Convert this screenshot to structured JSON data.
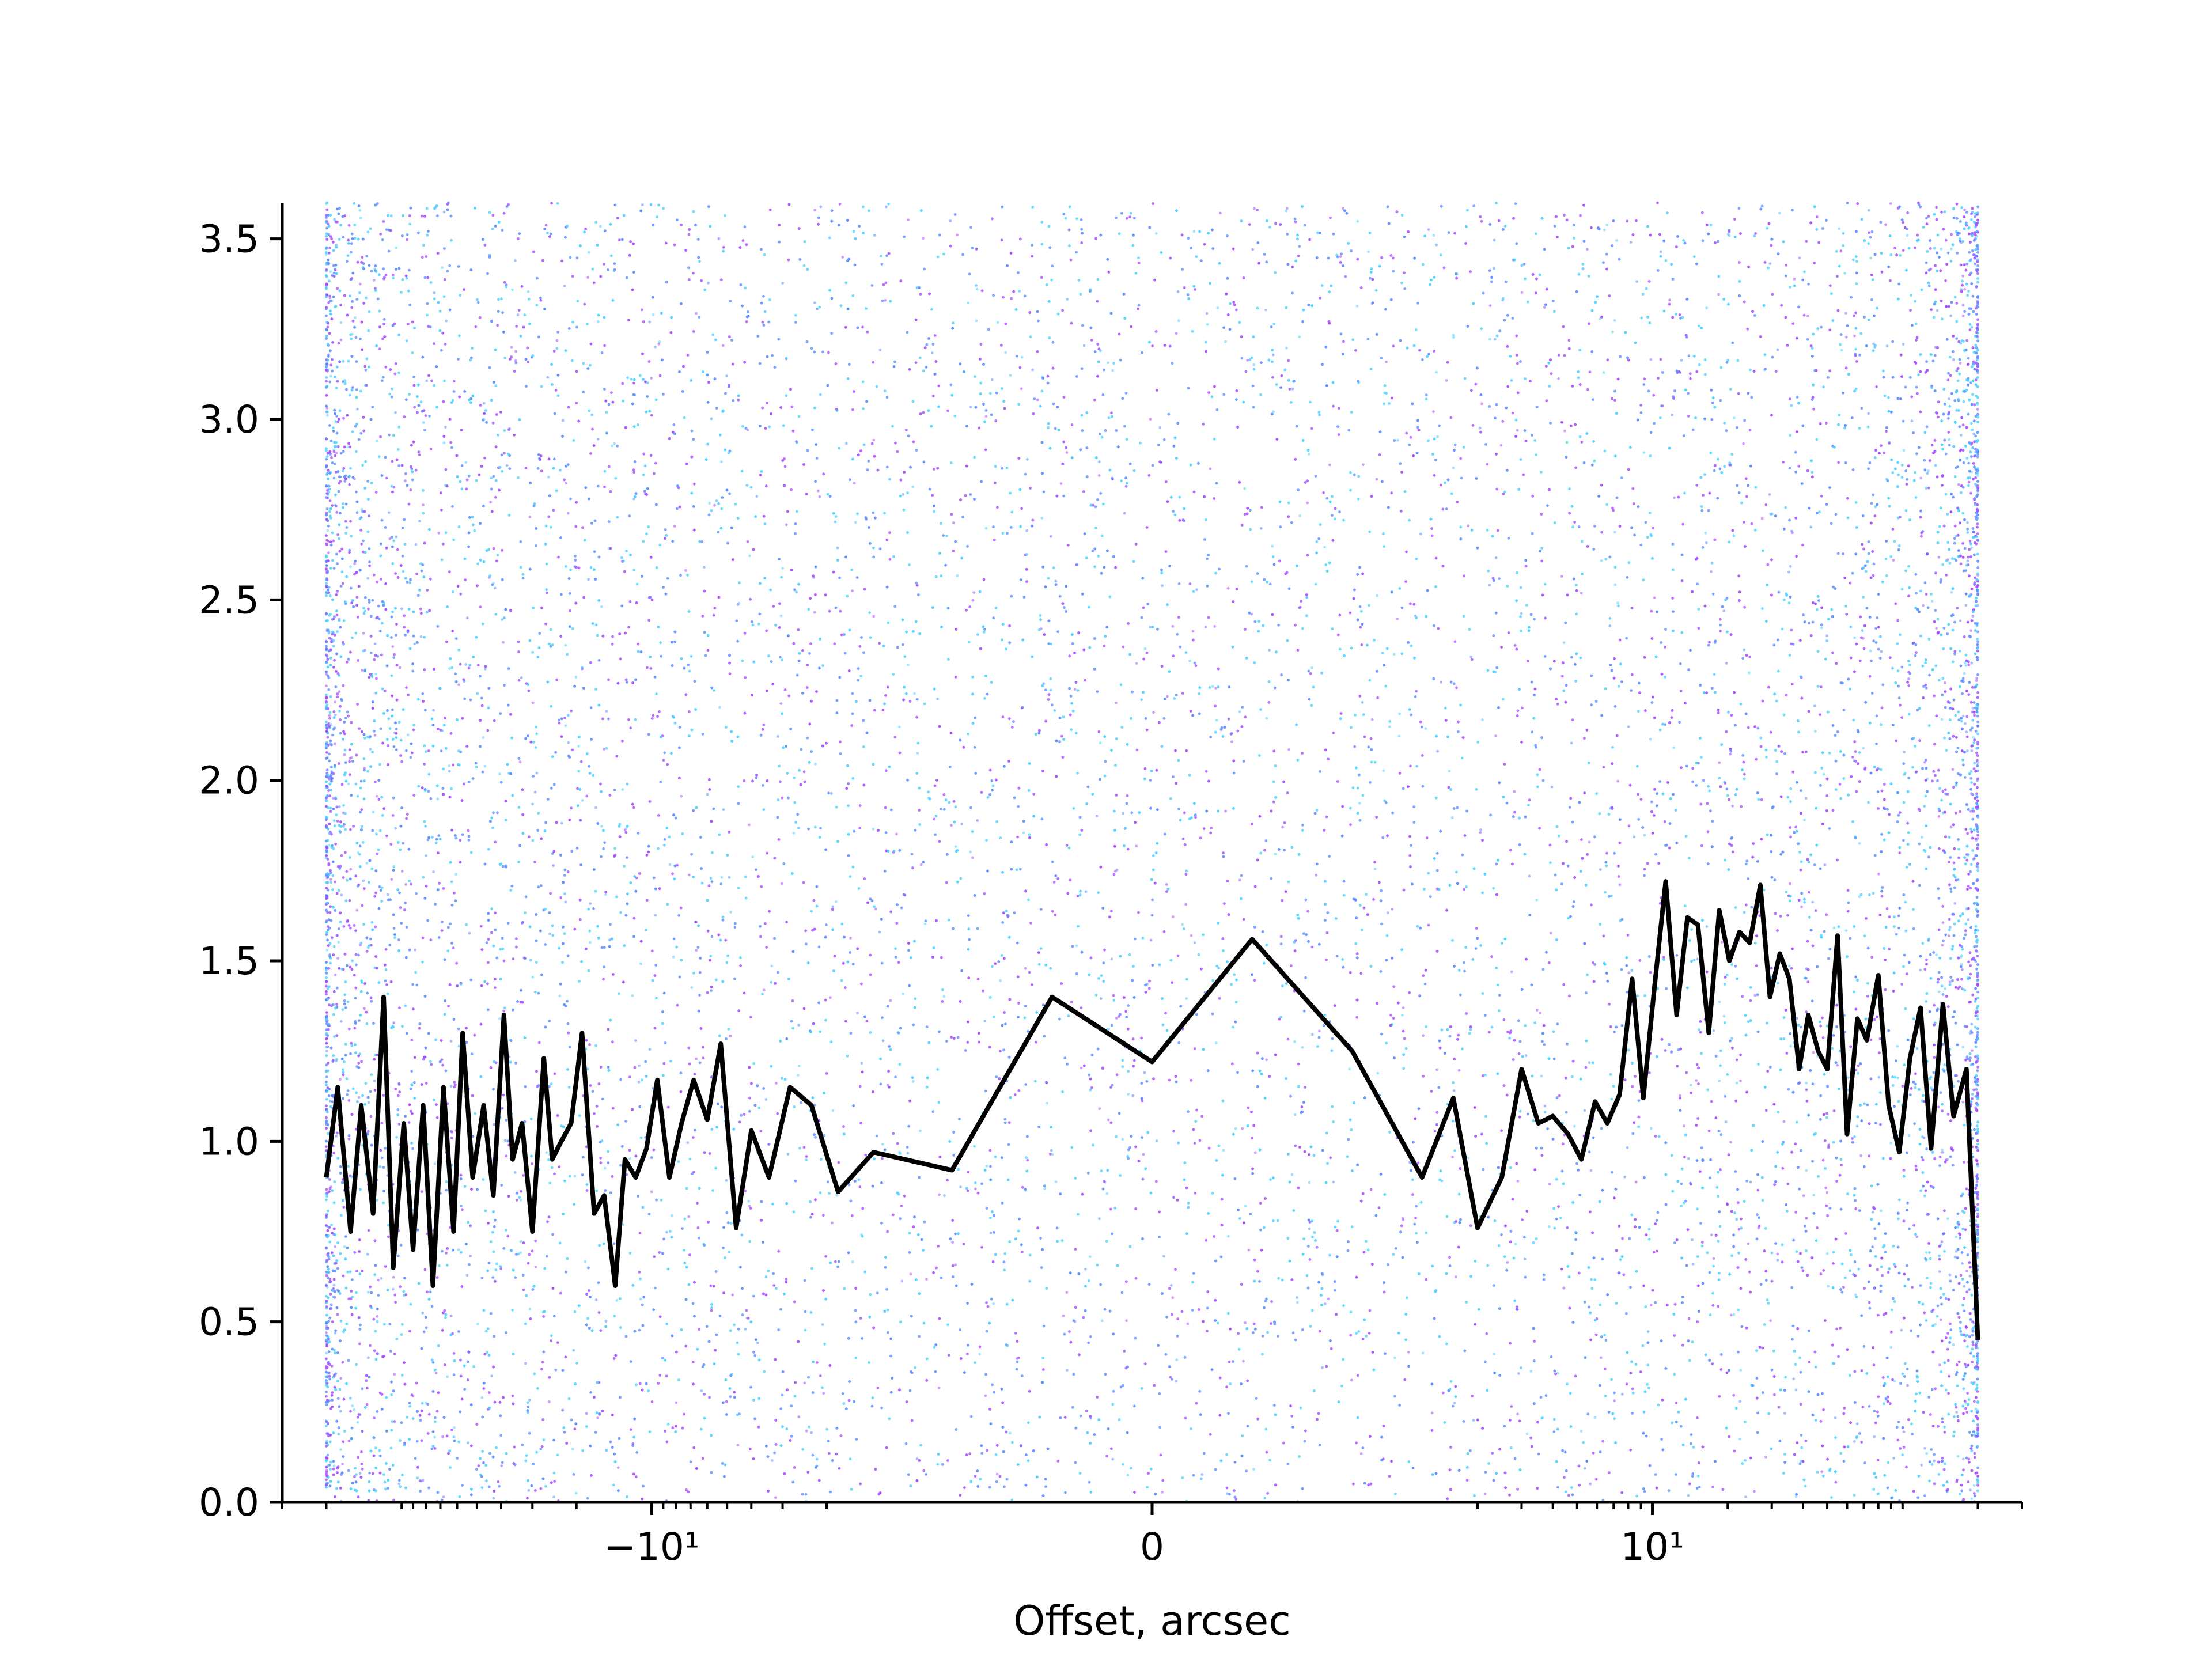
{
  "chart_data": {
    "type": "line",
    "title": "",
    "xlabel": "Offset, arcsec",
    "ylabel": "",
    "xscale": "symlog",
    "symlog_linthresh": 1,
    "xlim": [
      -300,
      300
    ],
    "ylim": [
      0,
      3.6
    ],
    "grid": false,
    "x_ticks": [
      {
        "value": -10,
        "label": "−10¹"
      },
      {
        "value": 0,
        "label": "0"
      },
      {
        "value": 10,
        "label": "10¹"
      }
    ],
    "y_ticks": [
      {
        "value": 0.0,
        "label": "0.0"
      },
      {
        "value": 0.5,
        "label": "0.5"
      },
      {
        "value": 1.0,
        "label": "1.0"
      },
      {
        "value": 1.5,
        "label": "1.5"
      },
      {
        "value": 2.0,
        "label": "2.0"
      },
      {
        "value": 2.5,
        "label": "2.5"
      },
      {
        "value": 3.0,
        "label": "3.0"
      },
      {
        "value": 3.5,
        "label": "3.5"
      }
    ],
    "background_scatter": {
      "description_colors": [
        "#a64dff",
        "#4dd2ff",
        "#5b8cff"
      ],
      "x_range": [
        -200,
        200
      ],
      "y_range": [
        0,
        3.6
      ],
      "density": "higher near the horizontal extremes, sparse in the centre"
    },
    "series": [
      {
        "color": "#000000",
        "x": [
          -200,
          -180,
          -160,
          -145,
          -130,
          -118,
          -108,
          -98,
          -90,
          -82,
          -75,
          -68,
          -62,
          -57,
          -52,
          -47,
          -43,
          -39,
          -36,
          -33,
          -30,
          -27,
          -25,
          -23,
          -21,
          -19,
          -17,
          -15.5,
          -14,
          -12.8,
          -11.6,
          -10.5,
          -9.5,
          -8.5,
          -7.6,
          -6.8,
          -6,
          -5.3,
          -4.6,
          -4,
          -3.4,
          -2.8,
          -2.3,
          -1.8,
          -1.3,
          -0.8,
          -0.4,
          0,
          0.4,
          0.8,
          1.2,
          1.6,
          2,
          2.5,
          3,
          3.5,
          4,
          4.6,
          5.2,
          5.9,
          6.6,
          7.4,
          8.3,
          9.2,
          10.2,
          11.3,
          12.5,
          13.8,
          15.2,
          16.8,
          18.5,
          20.3,
          22.3,
          24.5,
          27,
          29.5,
          32.3,
          35.3,
          38.6,
          42,
          46,
          50,
          55,
          60,
          66,
          72,
          80,
          88,
          97,
          107,
          118,
          130,
          145,
          160,
          180,
          200
        ],
        "values": [
          0.9,
          1.15,
          0.75,
          1.1,
          0.8,
          1.4,
          0.65,
          1.05,
          0.7,
          1.1,
          0.6,
          1.15,
          0.75,
          1.3,
          0.9,
          1.1,
          0.85,
          1.35,
          0.95,
          1.05,
          0.75,
          1.23,
          0.95,
          1.0,
          1.05,
          1.3,
          0.8,
          0.85,
          0.6,
          0.95,
          0.9,
          0.98,
          1.17,
          0.9,
          1.05,
          1.17,
          1.06,
          1.27,
          0.76,
          1.03,
          0.9,
          1.15,
          1.1,
          0.86,
          0.97,
          0.92,
          1.4,
          1.22,
          1.56,
          1.25,
          0.9,
          1.12,
          0.76,
          0.9,
          1.2,
          1.05,
          1.07,
          1.02,
          0.95,
          1.11,
          1.05,
          1.13,
          1.45,
          1.12,
          1.43,
          1.72,
          1.35,
          1.62,
          1.6,
          1.3,
          1.64,
          1.5,
          1.58,
          1.55,
          1.71,
          1.4,
          1.52,
          1.45,
          1.2,
          1.35,
          1.25,
          1.2,
          1.57,
          1.02,
          1.34,
          1.28,
          1.46,
          1.1,
          0.97,
          1.23,
          1.37,
          0.98,
          1.38,
          1.07,
          1.2,
          0.45
        ]
      }
    ]
  }
}
